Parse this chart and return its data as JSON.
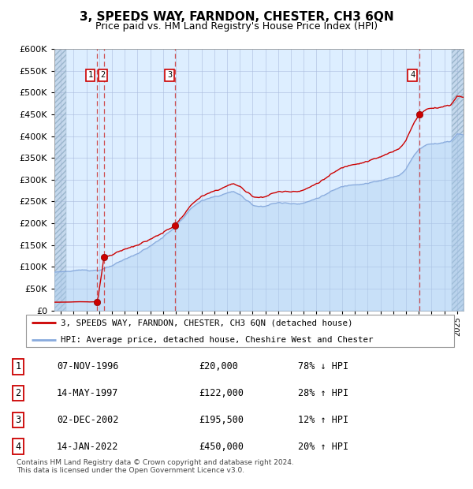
{
  "title": "3, SPEEDS WAY, FARNDON, CHESTER, CH3 6QN",
  "subtitle": "Price paid vs. HM Land Registry's House Price Index (HPI)",
  "title_fontsize": 11,
  "subtitle_fontsize": 9,
  "background_chart": "#ddeeff",
  "background_hatch_color": "#c5d8ec",
  "grid_color": "#aabbdd",
  "red_line_color": "#cc0000",
  "blue_line_color": "#88aadd",
  "blue_fill_color": "#aaccee",
  "sale_dot_color": "#cc0000",
  "vline_color": "#cc3333",
  "legend_line1": "3, SPEEDS WAY, FARNDON, CHESTER, CH3 6QN (detached house)",
  "legend_line2": "HPI: Average price, detached house, Cheshire West and Chester",
  "footer": "Contains HM Land Registry data © Crown copyright and database right 2024.\nThis data is licensed under the Open Government Licence v3.0.",
  "transactions": [
    {
      "id": 1,
      "date": "07-NOV-1996",
      "year": 1996.86,
      "price": 20000
    },
    {
      "id": 2,
      "date": "14-MAY-1997",
      "year": 1997.37,
      "price": 122000
    },
    {
      "id": 3,
      "date": "02-DEC-2002",
      "year": 2002.92,
      "price": 195500
    },
    {
      "id": 4,
      "date": "14-JAN-2022",
      "year": 2022.04,
      "price": 450000
    }
  ],
  "table_rows": [
    {
      "id": 1,
      "date": "07-NOV-1996",
      "price": "£20,000",
      "info": "78% ↓ HPI"
    },
    {
      "id": 2,
      "date": "14-MAY-1997",
      "price": "£122,000",
      "info": "28% ↑ HPI"
    },
    {
      "id": 3,
      "date": "02-DEC-2002",
      "price": "£195,500",
      "info": "12% ↑ HPI"
    },
    {
      "id": 4,
      "date": "14-JAN-2022",
      "price": "£450,000",
      "info": "20% ↑ HPI"
    }
  ],
  "ylim": [
    0,
    600000
  ],
  "yticks": [
    0,
    50000,
    100000,
    150000,
    200000,
    250000,
    300000,
    350000,
    400000,
    450000,
    500000,
    550000,
    600000
  ],
  "xlim_start": 1993.5,
  "xlim_end": 2025.5,
  "hpi_years": [
    1993.5,
    1994.0,
    1994.5,
    1995.0,
    1995.5,
    1996.0,
    1996.5,
    1997.0,
    1997.5,
    1998.0,
    1998.5,
    1999.0,
    1999.5,
    2000.0,
    2000.5,
    2001.0,
    2001.5,
    2002.0,
    2002.5,
    2003.0,
    2003.5,
    2004.0,
    2004.5,
    2005.0,
    2005.5,
    2006.0,
    2006.5,
    2007.0,
    2007.5,
    2008.0,
    2008.5,
    2009.0,
    2009.5,
    2010.0,
    2010.5,
    2011.0,
    2011.5,
    2012.0,
    2012.5,
    2013.0,
    2013.5,
    2014.0,
    2014.5,
    2015.0,
    2015.5,
    2016.0,
    2016.5,
    2017.0,
    2017.5,
    2018.0,
    2018.5,
    2019.0,
    2019.5,
    2020.0,
    2020.5,
    2021.0,
    2021.5,
    2022.0,
    2022.5,
    2023.0,
    2023.5,
    2024.0,
    2024.5,
    2025.0
  ],
  "hpi_vals": [
    88000,
    89000,
    90000,
    90500,
    91000,
    92000,
    93000,
    95000,
    98000,
    102000,
    107000,
    113000,
    120000,
    128000,
    137000,
    145000,
    155000,
    166000,
    178000,
    192000,
    208000,
    225000,
    240000,
    248000,
    252000,
    255000,
    260000,
    265000,
    268000,
    262000,
    248000,
    238000,
    235000,
    238000,
    242000,
    245000,
    244000,
    243000,
    245000,
    248000,
    252000,
    258000,
    265000,
    272000,
    278000,
    283000,
    287000,
    292000,
    295000,
    298000,
    300000,
    302000,
    305000,
    308000,
    315000,
    330000,
    355000,
    375000,
    385000,
    390000,
    392000,
    395000,
    398000,
    415000
  ],
  "label_positions": [
    {
      "id": "1",
      "year": 1996.3,
      "label_val": 540000
    },
    {
      "id": "2",
      "year": 1997.3,
      "label_val": 540000
    },
    {
      "id": "3",
      "year": 2002.5,
      "label_val": 540000
    },
    {
      "id": "4",
      "year": 2021.5,
      "label_val": 540000
    }
  ]
}
